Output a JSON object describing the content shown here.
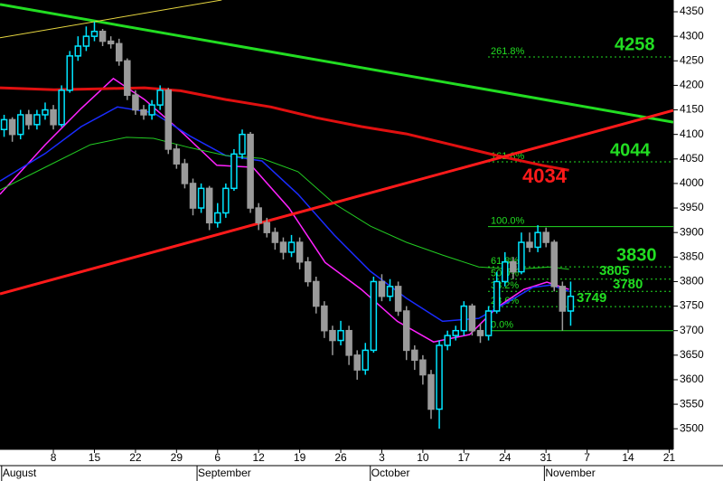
{
  "chart_data": {
    "type": "candlestick",
    "x": [
      0,
      1,
      2,
      3,
      4,
      5,
      6,
      7,
      8,
      9,
      10,
      11,
      12,
      13,
      14,
      15,
      16,
      17,
      18,
      19,
      20,
      21,
      22,
      23,
      24,
      25,
      26,
      27,
      28,
      29,
      30,
      31,
      32,
      33,
      34,
      35,
      36,
      37,
      38,
      39,
      40,
      41,
      42,
      43,
      44,
      45,
      46,
      47,
      48,
      49,
      50,
      51,
      52,
      53,
      54,
      55,
      56,
      57,
      58,
      59,
      60,
      61,
      62,
      63,
      64,
      65,
      66,
      67,
      68,
      69
    ],
    "open": [
      4110,
      4130,
      4100,
      4140,
      4120,
      4140,
      4150,
      4120,
      4190,
      4260,
      4280,
      4300,
      4310,
      4290,
      4285,
      4250,
      4180,
      4150,
      4140,
      4160,
      4190,
      4070,
      4040,
      4000,
      3950,
      3990,
      3920,
      3940,
      3990,
      4060,
      4100,
      3950,
      3920,
      3900,
      3880,
      3860,
      3880,
      3840,
      3800,
      3750,
      3700,
      3680,
      3700,
      3650,
      3620,
      3660,
      3800,
      3770,
      3790,
      3740,
      3660,
      3640,
      3610,
      3540,
      3670,
      3690,
      3700,
      3750,
      3700,
      3690,
      3740,
      3800,
      3840,
      3820,
      3880,
      3870,
      3900,
      3880,
      3790,
      3740
    ],
    "high": [
      4140,
      4135,
      4150,
      4150,
      4150,
      4165,
      4160,
      4200,
      4270,
      4300,
      4320,
      4330,
      4315,
      4300,
      4295,
      4255,
      4190,
      4160,
      4170,
      4200,
      4195,
      4080,
      4050,
      4010,
      4000,
      3995,
      3960,
      4000,
      4070,
      4110,
      4105,
      3960,
      3930,
      3910,
      3890,
      3895,
      3890,
      3850,
      3810,
      3760,
      3710,
      3720,
      3710,
      3660,
      3675,
      3810,
      3815,
      3805,
      3800,
      3750,
      3670,
      3650,
      3620,
      3680,
      3700,
      3710,
      3760,
      3755,
      3715,
      3750,
      3820,
      3860,
      3850,
      3900,
      3900,
      3915,
      3910,
      3885,
      3800,
      3800
    ],
    "low": [
      4095,
      4085,
      4090,
      4110,
      4110,
      4130,
      4110,
      4115,
      4185,
      4250,
      4270,
      4290,
      4280,
      4275,
      4240,
      4170,
      4140,
      4130,
      4130,
      4150,
      4060,
      4030,
      3990,
      3935,
      3940,
      3905,
      3910,
      3930,
      3985,
      4050,
      3940,
      3905,
      3890,
      3865,
      3845,
      3850,
      3825,
      3790,
      3735,
      3685,
      3650,
      3670,
      3630,
      3600,
      3610,
      3655,
      3760,
      3760,
      3730,
      3640,
      3620,
      3590,
      3520,
      3500,
      3660,
      3680,
      3690,
      3690,
      3675,
      3680,
      3735,
      3790,
      3805,
      3815,
      3860,
      3860,
      3870,
      3780,
      3700,
      3710
    ],
    "close": [
      4130,
      4100,
      4140,
      4120,
      4140,
      4150,
      4120,
      4190,
      4260,
      4280,
      4300,
      4310,
      4290,
      4285,
      4250,
      4180,
      4150,
      4140,
      4160,
      4190,
      4070,
      4040,
      4000,
      3950,
      3990,
      3920,
      3940,
      3990,
      4060,
      4100,
      3950,
      3920,
      3900,
      3880,
      3860,
      3880,
      3840,
      3800,
      3750,
      3700,
      3680,
      3700,
      3650,
      3620,
      3660,
      3800,
      3770,
      3790,
      3740,
      3660,
      3640,
      3610,
      3540,
      3670,
      3690,
      3700,
      3750,
      3700,
      3690,
      3740,
      3800,
      3840,
      3820,
      3880,
      3870,
      3900,
      3880,
      3790,
      3740,
      3770
    ],
    "up_color": "#00e5ff",
    "down_color": "#9a9a9a",
    "xlim": [
      -0.5,
      81.5
    ],
    "xticks": [
      {
        "value": 6,
        "label": "8"
      },
      {
        "value": 11,
        "label": "15"
      },
      {
        "value": 16,
        "label": "22"
      },
      {
        "value": 21,
        "label": "29"
      },
      {
        "value": 26,
        "label": "6"
      },
      {
        "value": 31,
        "label": "12"
      },
      {
        "value": 36,
        "label": "19"
      },
      {
        "value": 41,
        "label": "26"
      },
      {
        "value": 46,
        "label": "3"
      },
      {
        "value": 51,
        "label": "10"
      },
      {
        "value": 56,
        "label": "17"
      },
      {
        "value": 61,
        "label": "24"
      },
      {
        "value": 66,
        "label": "31"
      },
      {
        "value": 71,
        "label": "7"
      },
      {
        "value": 76,
        "label": "14"
      },
      {
        "value": 81,
        "label": "21"
      }
    ],
    "month_labels": [
      {
        "value": -0.3,
        "label": "August"
      },
      {
        "value": 23.5,
        "label": "September"
      },
      {
        "value": 44.6,
        "label": "October"
      },
      {
        "value": 65.8,
        "label": "November"
      }
    ],
    "ylim": [
      3458,
      4374
    ],
    "yticks": [
      3500,
      3550,
      3600,
      3650,
      3700,
      3750,
      3800,
      3850,
      3900,
      3950,
      4000,
      4050,
      4100,
      4150,
      4200,
      4250,
      4300,
      4350
    ],
    "lines": [
      {
        "color": "#ff22ff",
        "width": 1.5,
        "x": [
          -0.5,
          5,
          9.4,
          13.3,
          17.1,
          21.5,
          25.9,
          30.3,
          34.7,
          39.1,
          43.5,
          47.9,
          52.3,
          56.7,
          60,
          63.3,
          66.1,
          68.8
        ],
        "values": [
          3978,
          4079,
          4153,
          4214,
          4171,
          4107,
          4037,
          4033,
          3950,
          3839,
          3784,
          3719,
          3677,
          3692,
          3747,
          3784,
          3799,
          3784
        ]
      },
      {
        "color": "#1a2cff",
        "width": 1.5,
        "x": [
          -0.5,
          5,
          9.4,
          13.8,
          18.2,
          22.6,
          27,
          31.4,
          35.8,
          40.2,
          44.6,
          49,
          53.4,
          57.8,
          61.1,
          64.4,
          66.6,
          68.8
        ],
        "values": [
          4005,
          4061,
          4116,
          4156,
          4144,
          4097,
          4057,
          4046,
          3978,
          3895,
          3821,
          3766,
          3719,
          3725,
          3756,
          3788,
          3793,
          3780
        ]
      },
      {
        "color": "#22cc22",
        "width": 1,
        "x": [
          -0.5,
          5,
          10.5,
          14.9,
          18.2,
          22.6,
          27,
          31.4,
          35.8,
          40.2,
          44.6,
          49,
          53.4,
          57.8,
          62.2,
          66.6,
          68.8
        ],
        "values": [
          3987,
          4033,
          4079,
          4094,
          4092,
          4073,
          4057,
          4051,
          4024,
          3959,
          3913,
          3880,
          3854,
          3830,
          3825,
          3830,
          3825
        ]
      },
      {
        "color": "#e01010",
        "width": 3,
        "x": [
          -0.5,
          6.1,
          11.6,
          17.1,
          21.5,
          27,
          32.5,
          38,
          43.5,
          49,
          54.5,
          60,
          65.5,
          68.8
        ],
        "values": [
          4195,
          4191,
          4193,
          4195,
          4189,
          4171,
          4156,
          4134,
          4116,
          4101,
          4079,
          4057,
          4037,
          4027
        ]
      },
      {
        "color": "#22dd22",
        "width": 3,
        "x": [
          -0.5,
          81.5
        ],
        "values": [
          4365,
          4125
        ]
      },
      {
        "color": "#ff1a1a",
        "width": 3,
        "x": [
          -0.5,
          81.5
        ],
        "values": [
          3775,
          4149
        ]
      },
      {
        "color": "#e6d640",
        "width": 1,
        "x": [
          -0.5,
          26.5
        ],
        "values": [
          4297,
          4374
        ]
      }
    ],
    "levels": [
      {
        "label": "261.8%",
        "value": 4258,
        "dashed": true,
        "show_value": true
      },
      {
        "label": "161.8%",
        "value": 4044,
        "dashed": true,
        "show_value": true
      },
      {
        "label": "100.0%",
        "value": 3912,
        "dashed": false,
        "show_value": false
      },
      {
        "label": "61.8%",
        "value": 3830,
        "dashed": true,
        "show_value": true
      },
      {
        "label": "50.0%",
        "value": 3805,
        "dashed": true,
        "show_value": true
      },
      {
        "label": "38.2%",
        "value": 3780,
        "dashed": true,
        "show_value": true
      },
      {
        "label": "23.6%",
        "value": 3749,
        "dashed": true,
        "show_value": true
      },
      {
        "label": "0.0%",
        "value": 3700,
        "dashed": false,
        "show_value": false
      }
    ],
    "level_color": "#22dd22",
    "annotations": [
      {
        "value": 4034,
        "color": "#ff1a1a"
      }
    ]
  }
}
